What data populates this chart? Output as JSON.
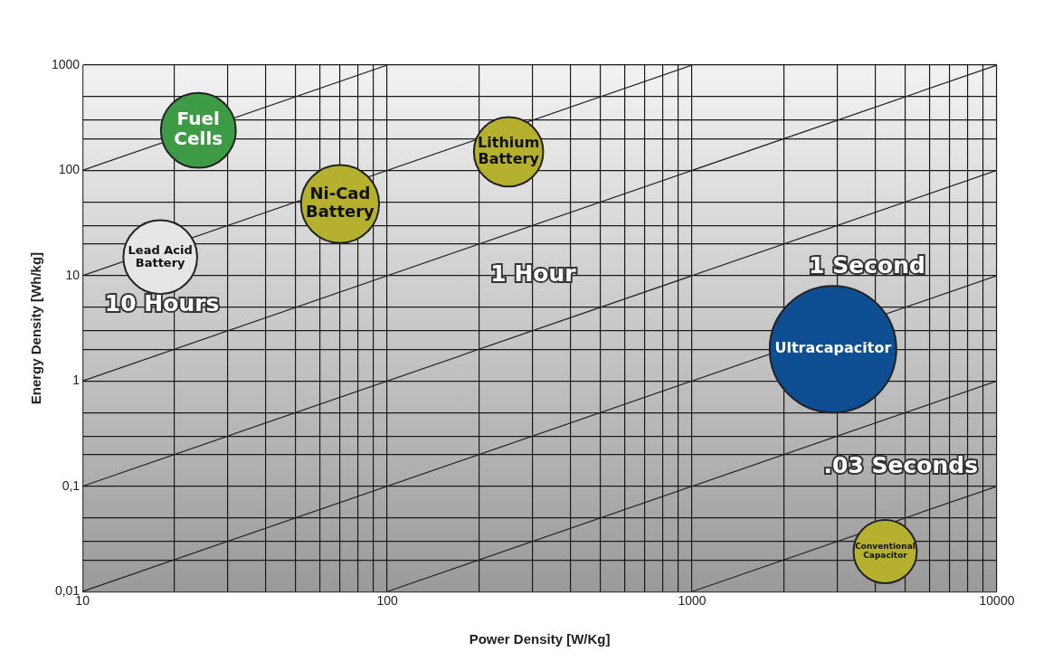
{
  "chart_data": {
    "type": "bubble",
    "xlabel": "Power Density [W/Kg]",
    "ylabel": "Energy Density [Wh/kg]",
    "log": "xy",
    "grid": true,
    "legend": false,
    "xlim": [
      10,
      10000
    ],
    "ylim": [
      0.01,
      1000
    ],
    "xticks": [
      10,
      {
        "value": 20,
        "label": null
      },
      {
        "value": 30,
        "label": null
      },
      {
        "value": 40,
        "label": null
      },
      {
        "value": 50,
        "label": null
      },
      {
        "value": 60,
        "label": null
      },
      {
        "value": 70,
        "label": null
      },
      {
        "value": 80,
        "label": null
      },
      {
        "value": 90,
        "label": null
      },
      100,
      {
        "value": 200,
        "label": null
      },
      {
        "value": 300,
        "label": null
      },
      {
        "value": 400,
        "label": null
      },
      {
        "value": 500,
        "label": null
      },
      {
        "value": 600,
        "label": null
      },
      {
        "value": 700,
        "label": null
      },
      {
        "value": 800,
        "label": null
      },
      {
        "value": 900,
        "label": null
      },
      1000,
      {
        "value": 2000,
        "label": null
      },
      {
        "value": 3000,
        "label": null
      },
      {
        "value": 4000,
        "label": null
      },
      {
        "value": 5000,
        "label": null
      },
      {
        "value": 6000,
        "label": null
      },
      {
        "value": 7000,
        "label": null
      },
      {
        "value": 8000,
        "label": null
      },
      {
        "value": 9000,
        "label": null
      },
      10000
    ],
    "yticks": [
      {
        "value": 0.01,
        "label": "0,01"
      },
      {
        "value": 0.02,
        "label": null
      },
      {
        "value": 0.03,
        "label": null
      },
      {
        "value": 0.05,
        "label": null
      },
      {
        "value": 0.1,
        "label": "0,1"
      },
      {
        "value": 0.2,
        "label": null
      },
      {
        "value": 0.3,
        "label": null
      },
      {
        "value": 0.5,
        "label": null
      },
      1,
      {
        "value": 2,
        "label": null
      },
      {
        "value": 3,
        "label": null
      },
      {
        "value": 5,
        "label": null
      },
      10,
      {
        "value": 20,
        "label": null
      },
      {
        "value": 30,
        "label": null
      },
      {
        "value": 50,
        "label": null
      },
      100,
      {
        "value": 200,
        "label": null
      },
      {
        "value": 300,
        "label": null
      },
      {
        "value": 500,
        "label": null
      },
      1000
    ],
    "series": [
      {
        "type": "line",
        "color": "#222222",
        "x": [
          10,
          100
        ],
        "values": [
          100,
          1000
        ]
      },
      {
        "type": "line",
        "color": "#222222",
        "x": [
          10,
          1000
        ],
        "values": [
          10,
          1000
        ]
      },
      {
        "type": "line",
        "color": "#222222",
        "x": [
          10,
          10000
        ],
        "values": [
          1,
          1000
        ]
      },
      {
        "type": "line",
        "color": "#222222",
        "x": [
          10,
          10000
        ],
        "values": [
          0.1,
          100
        ]
      },
      {
        "type": "line",
        "color": "#222222",
        "x": [
          10,
          10000
        ],
        "values": [
          0.01,
          10
        ]
      },
      {
        "type": "line",
        "color": "#222222",
        "x": [
          100,
          10000
        ],
        "values": [
          0.01,
          1
        ]
      },
      {
        "type": "line",
        "color": "#222222",
        "x": [
          1000,
          10000
        ],
        "values": [
          0.01,
          0.1
        ]
      },
      {
        "name": "Fuel Cells",
        "color": "#3d9b46",
        "x": [
          24
        ],
        "values": [
          240
        ],
        "sizes": [
          0.35
        ]
      },
      {
        "name": "Lithium Battery",
        "color": "#b5b02e",
        "x": [
          250
        ],
        "values": [
          150
        ],
        "sizes": [
          0.3
        ]
      },
      {
        "name": "Ni-Cad Battery",
        "color": "#b5b02e",
        "x": [
          70
        ],
        "values": [
          48
        ],
        "sizes": [
          0.38
        ]
      },
      {
        "name": "Lead Acid Battery",
        "color": "#e6e6e6",
        "x": [
          18
        ],
        "values": [
          15
        ],
        "sizes": [
          0.34
        ]
      },
      {
        "name": "Ultracapacitor",
        "color": "#0d4f92",
        "x": [
          2900
        ],
        "values": [
          2
        ],
        "sizes": [
          1
        ]
      },
      {
        "name": "Conventional Capacitor",
        "color": "#b5b02e",
        "x": [
          4300
        ],
        "values": [
          0.024
        ],
        "sizes": [
          0.25
        ]
      }
    ],
    "annotations": [
      "10 Hours",
      "1 Hour",
      "1 Second",
      ".03 Seconds"
    ]
  }
}
